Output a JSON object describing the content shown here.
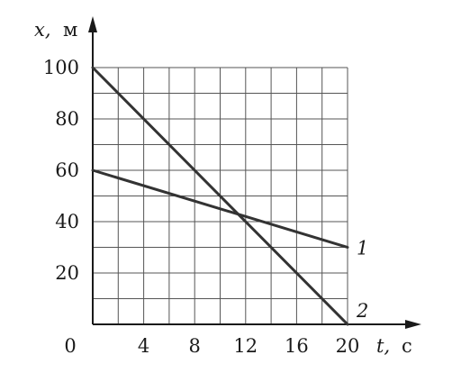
{
  "chart_data": {
    "type": "line",
    "title": "",
    "x": [
      0,
      20
    ],
    "xlim": [
      0,
      20
    ],
    "ylim": [
      0,
      100
    ],
    "grid": true,
    "grid_x_step": 2,
    "grid_y_step": 10,
    "xticks": [
      0,
      4,
      8,
      12,
      16,
      20
    ],
    "yticks": [
      20,
      40,
      60,
      80,
      100
    ],
    "xtick_labels": [
      "0",
      "4",
      "8",
      "12",
      "16",
      "20"
    ],
    "ytick_labels": [
      "20",
      "40",
      "60",
      "80",
      "100"
    ],
    "xlabel": {
      "var": "t,",
      "unit": "с"
    },
    "ylabel": {
      "var": "x,",
      "unit": "м"
    },
    "series": [
      {
        "name": "1",
        "x": [
          0,
          20
        ],
        "values": [
          60,
          30
        ]
      },
      {
        "name": "2",
        "x": [
          0,
          20
        ],
        "values": [
          100,
          0
        ]
      }
    ],
    "colors": {
      "line": "#333333",
      "grid": "#555555",
      "axis": "#1a1a1a"
    }
  }
}
